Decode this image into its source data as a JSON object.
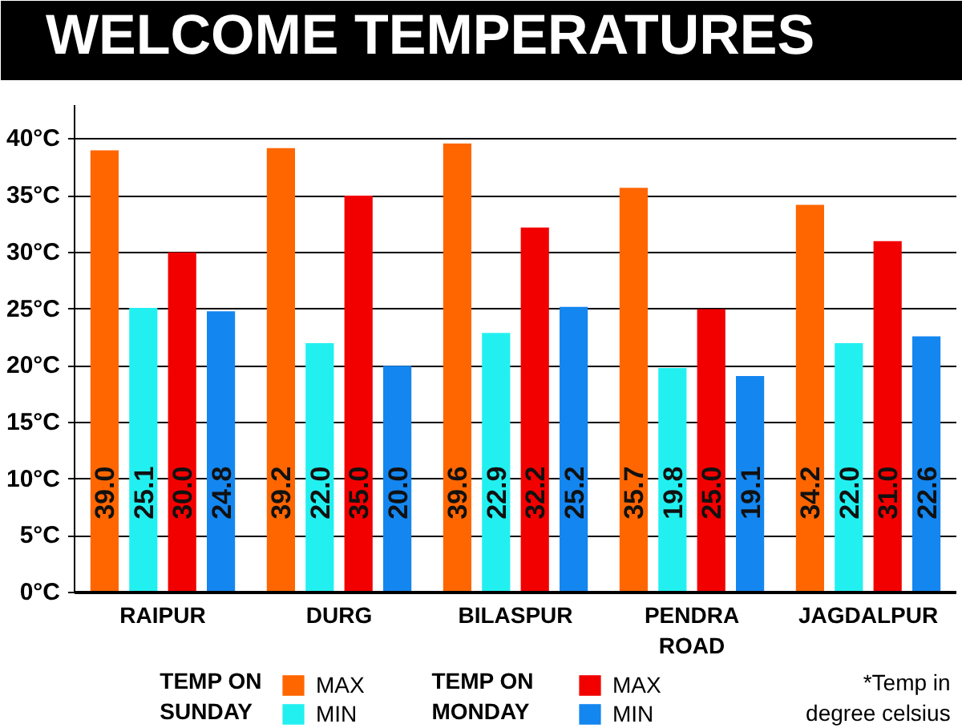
{
  "chart_data": {
    "type": "bar",
    "title": "WELCOME TEMPERATURES",
    "categories": [
      "RAIPUR",
      "DURG",
      "BILASPUR",
      "PENDRA ROAD",
      "JAGDALPUR"
    ],
    "series": [
      {
        "name": "MAX",
        "color": "#ff6600",
        "values": [
          39.0,
          39.2,
          39.6,
          35.7,
          34.2
        ],
        "value_labels": [
          "39.0",
          "39.2",
          "39.6",
          "35.7",
          "34.2"
        ]
      },
      {
        "name": "MIN",
        "color": "#22f0f0",
        "values": [
          25.1,
          22.0,
          22.9,
          19.8,
          22.0
        ],
        "value_labels": [
          "25.1",
          "22.0",
          "22.9",
          "19.8",
          "22.0"
        ]
      },
      {
        "name": "MAX",
        "color": "#f20000",
        "values": [
          30.0,
          35.0,
          32.2,
          25.0,
          31.0
        ],
        "value_labels": [
          "30.0",
          "35.0",
          "32.2",
          "25.0",
          "31.0"
        ]
      },
      {
        "name": "MIN",
        "color": "#1486f0",
        "values": [
          24.8,
          20.0,
          25.2,
          19.1,
          22.6
        ],
        "value_labels": [
          "24.8",
          "20.0",
          "25.2",
          "19.1",
          "22.6"
        ]
      }
    ],
    "ylim": [
      0,
      43
    ],
    "yticks": [
      {
        "value": 0,
        "label": "0°C"
      },
      {
        "value": 5,
        "label": "5°C"
      },
      {
        "value": 10,
        "label": "10°C"
      },
      {
        "value": 15,
        "label": "15°C"
      },
      {
        "value": 20,
        "label": "20°C"
      },
      {
        "value": 25,
        "label": "25°C"
      },
      {
        "value": 30,
        "label": "30°C"
      },
      {
        "value": 35,
        "label": "35°C"
      },
      {
        "value": 40,
        "label": "40°C"
      }
    ],
    "grid": "y",
    "legend": "bottom",
    "annotations": [
      "TEMP ON SUNDAY",
      "TEMP ON MONDAY",
      "*Temp in degree celsius"
    ]
  }
}
